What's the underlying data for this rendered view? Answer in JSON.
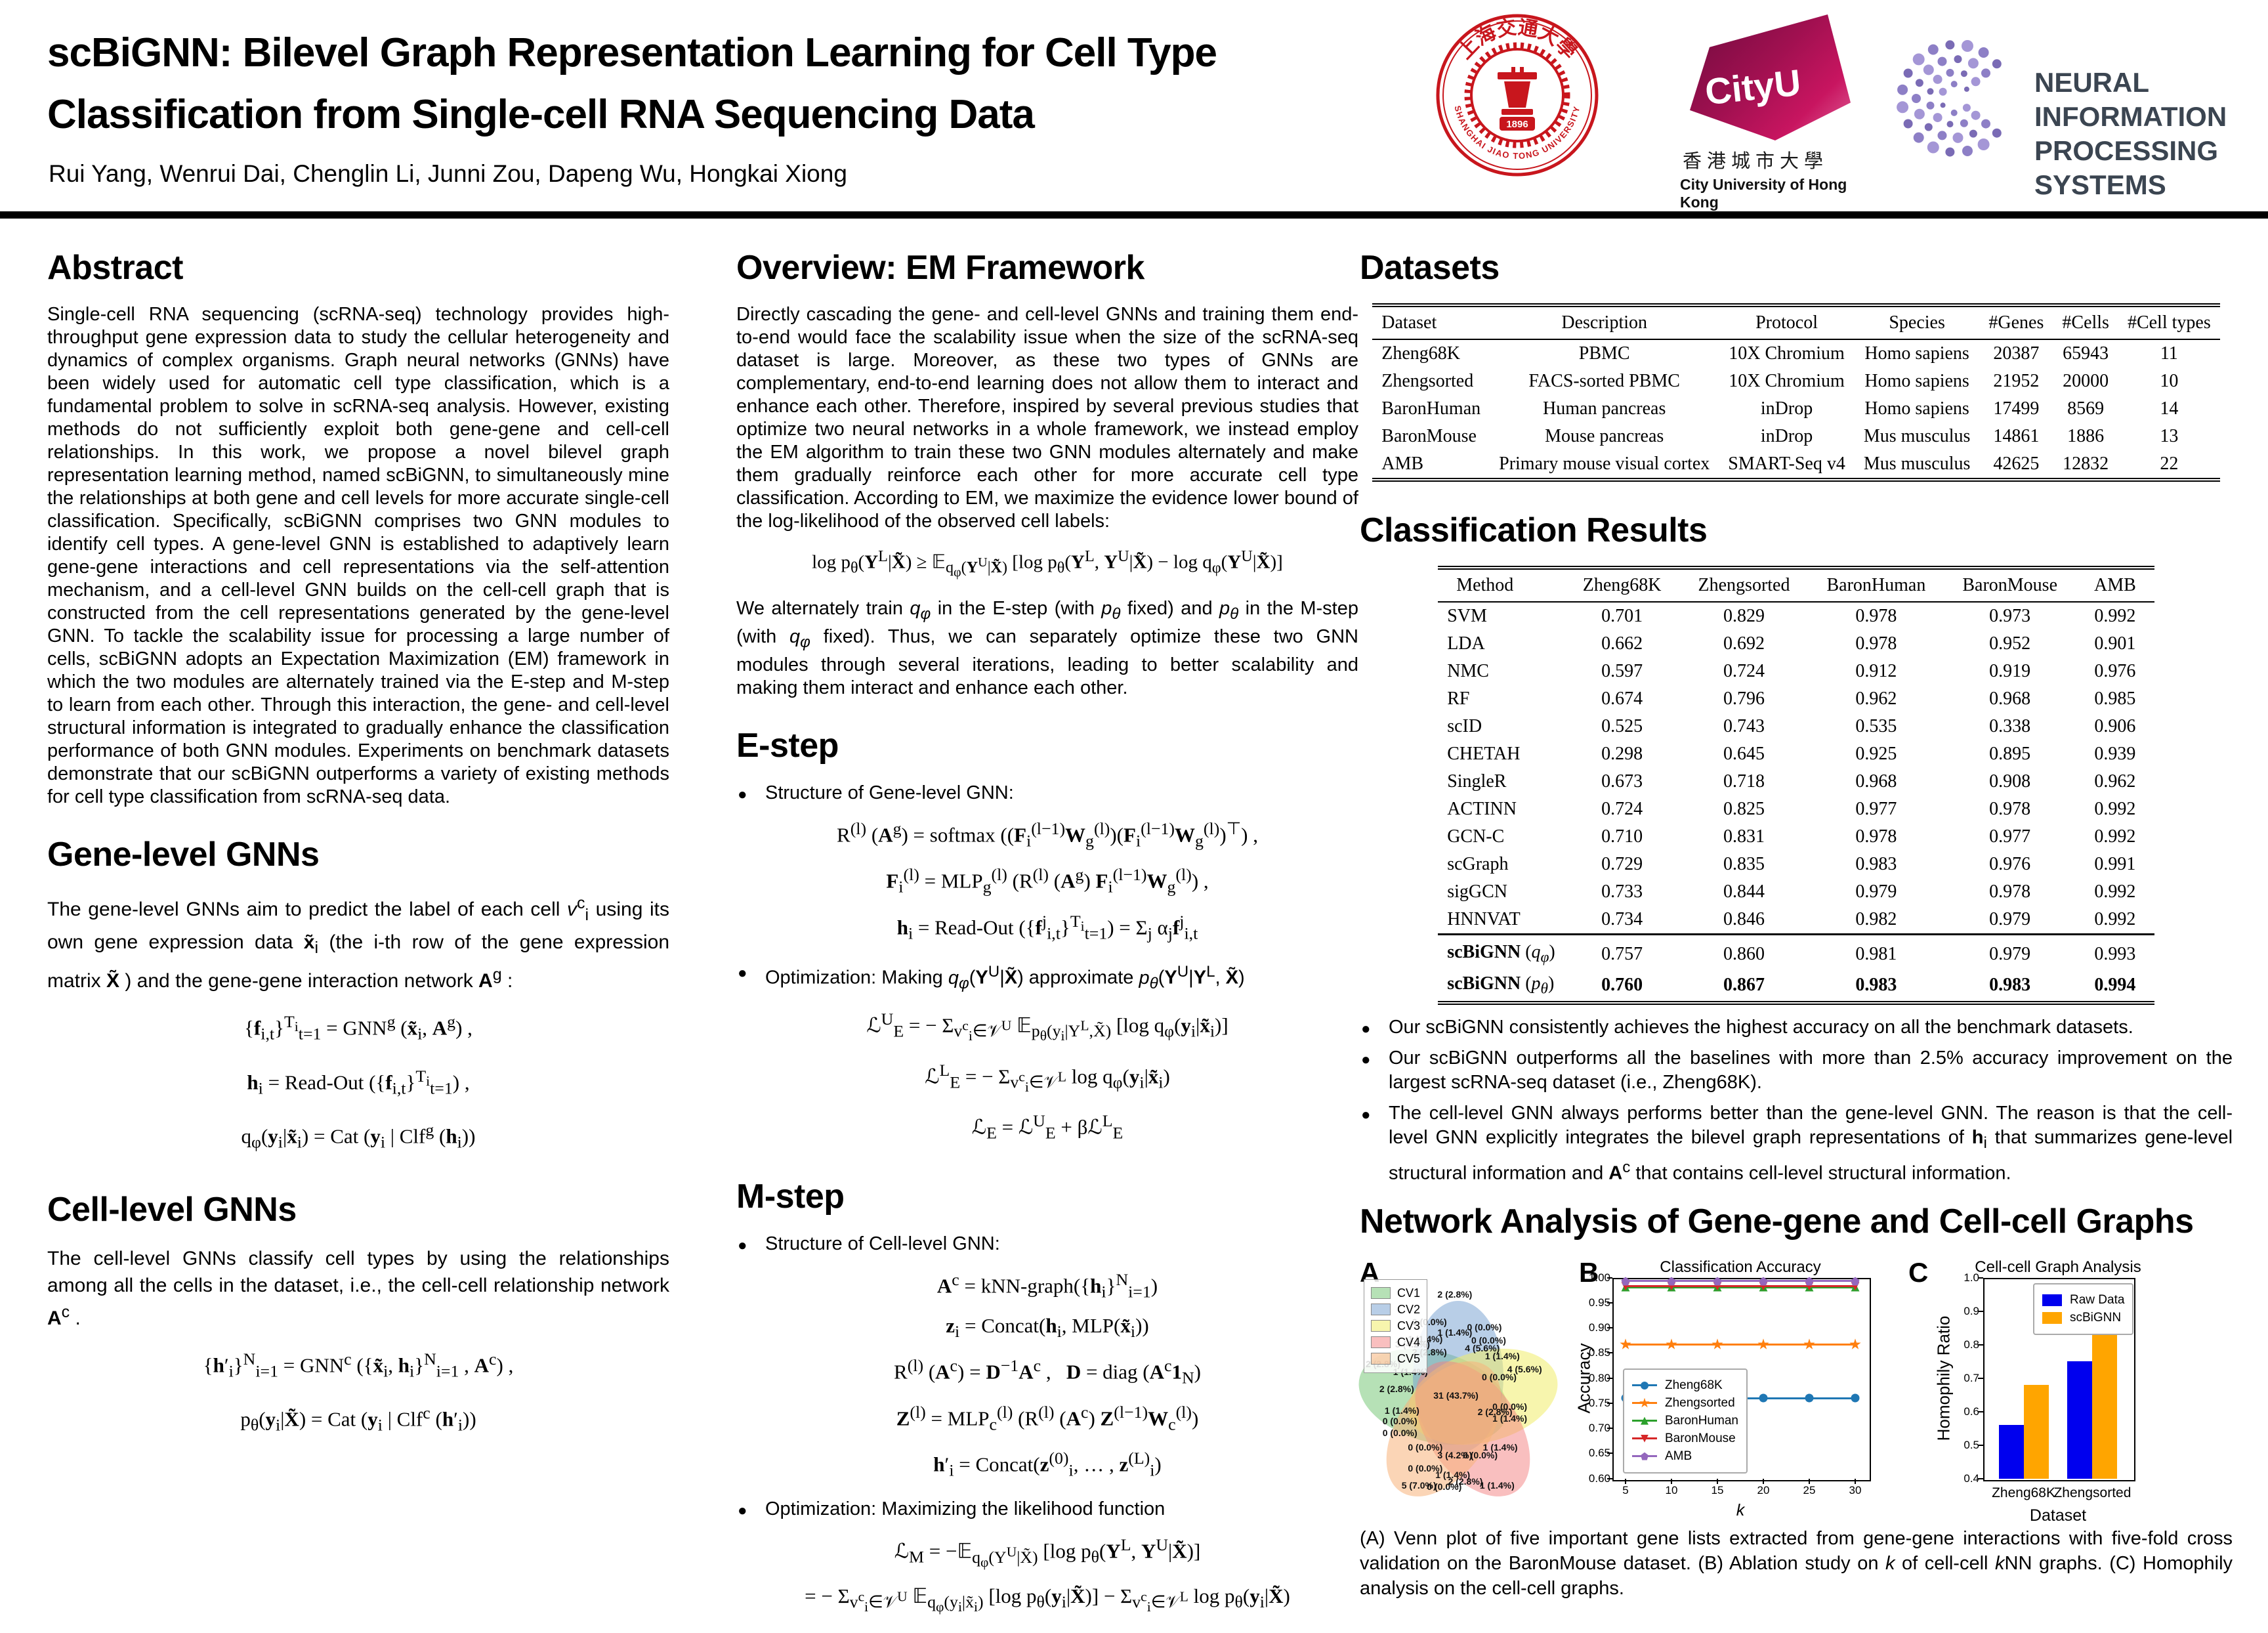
{
  "header": {
    "title_line1": "scBiGNN: Bilevel Graph Representation Learning for Cell Type",
    "title_line2": "Classification from Single-cell RNA Sequencing Data",
    "authors": "Rui Yang, Wenrui Dai, Chenglin Li, Junni Zou, Dapeng Wu, Hongkai Xiong",
    "logos": {
      "sjtu": {
        "arc_top": "上海交通大學",
        "arc_bottom": "SHANGHAI JIAO TONG UNIVERSITY",
        "year": "1896"
      },
      "cityu": {
        "name": "CityU",
        "chinese": "香港城市大學",
        "english": "City University of Hong Kong"
      },
      "neurips": {
        "line1": "NEURAL INFORMATION",
        "line2": "PROCESSING SYSTEMS"
      }
    }
  },
  "abstract": {
    "heading": "Abstract",
    "body": "Single-cell RNA sequencing (scRNA-seq) technology provides high-throughput gene expression data to study the cellular heterogeneity and dynamics of complex organisms. Graph neural networks (GNNs) have been widely used for automatic cell type classification, which is a fundamental problem to solve in scRNA-seq analysis. However, existing methods do not sufficiently exploit both gene-gene and cell-cell relationships. In this work, we propose a novel bilevel graph representation learning method, named scBiGNN, to simultaneously mine the relationships at both gene and cell levels for more accurate single-cell classification. Specifically, scBiGNN comprises two GNN modules to identify cell types. A gene-level GNN is established to adaptively learn gene-gene interactions and cell representations via the self-attention mechanism, and a cell-level GNN builds on the cell-cell graph that is constructed from the cell representations generated by the gene-level GNN. To tackle the scalability issue for processing a large number of cells, scBiGNN adopts an Expectation Maximization (EM) framework in which the two modules are alternately trained via the E-step and M-step to learn from each other. Through this interaction, the gene- and cell-level structural information is integrated to gradually enhance the classification performance of both GNN modules. Experiments on benchmark datasets demonstrate that our scBiGNN outperforms a variety of existing methods for cell type classification from scRNA-seq data."
  },
  "gene_gnn": {
    "heading": "Gene-level GNNs",
    "intro_html": "The gene-level GNNs aim to predict the label of each cell <i>v</i><sup>c</sup><sub>i</sub> using its own gene expression data <b>x̃</b><sub>i</sub> (the i-th row of the gene expression matrix <b>X̃</b> ) and the gene-gene interaction network <b>A</b><sup>g</sup> :",
    "equations": [
      "{<b>f</b><sub>i,t</sub>}<sup>T<sub>i</sub></sup><sub>t=1</sub> = GNN<sup>g</sup> (<b>x̃</b><sub>i</sub>, <b>A</b><sup>g</sup>) ,",
      "<b>h</b><sub>i</sub> = Read-Out ({<b>f</b><sub>i,t</sub>}<sup>T<sub>i</sub></sup><sub>t=1</sub>) ,",
      "q<sub>φ</sub>(<b>y</b><sub>i</sub>|<b>x̃</b><sub>i</sub>) = Cat (<b>y</b><sub>i</sub> | Clf<sup>g</sup> (<b>h</b><sub>i</sub>))"
    ]
  },
  "cell_gnn": {
    "heading": "Cell-level GNNs",
    "intro_html": "The cell-level GNNs classify cell types by using the relationships among all the cells in the dataset, i.e., the cell-cell relationship network <b>A</b><sup>c</sup> .",
    "equations": [
      "{<b>h</b>′<sub>i</sub>}<sup>N</sup><sub>i=1</sub> = GNN<sup>c</sup> ({<b>x̃</b><sub>i</sub>, <b>h</b><sub>i</sub>}<sup>N</sup><sub>i=1</sub> , <b>A</b><sup>c</sup>) ,",
      "p<sub>θ</sub>(<b>y</b><sub>i</sub>|<b>X̃</b>) = Cat (<b>y</b><sub>i</sub> | Clf<sup>c</sup> (<b>h</b>′<sub>i</sub>))"
    ]
  },
  "overview": {
    "heading": "Overview: EM Framework",
    "body": "Directly cascading the gene- and cell-level GNNs and training them end-to-end would face the scalability issue when the size of the scRNA-seq dataset is large. Moreover, as these two types of GNNs are complementary, end-to-end learning does not allow them to interact and enhance each other. Therefore, inspired by several previous studies that optimize two neural networks in a whole framework, we instead employ the EM algorithm to train these two GNN modules alternately and make them gradually reinforce each other for more accurate cell type classification. According to EM, we maximize the evidence lower bound of the log-likelihood of the observed cell labels:",
    "elbo_html": "log p<sub>θ</sub>(<b>Y</b><sup>L</sup>|<b>X̃</b>) ≥ 𝔼<sub>q<sub>φ</sub>(<b>Y</b><sup>U</sup>|<b>X̃</b>)</sub> [log p<sub>θ</sub>(<b>Y</b><sup>L</sup>, <b>Y</b><sup>U</sup>|<b>X̃</b>) − log q<sub>φ</sub>(<b>Y</b><sup>U</sup>|<b>X̃</b>)]",
    "body2_html": "We alternately train <i>q<sub>φ</sub></i> in the E-step (with <i>p<sub>θ</sub></i> fixed) and <i>p<sub>θ</sub></i> in the M-step (with <i>q<sub>φ</sub></i> fixed). Thus, we can separately optimize these two GNN modules through several iterations, leading to better scalability and making them interact and enhance each other."
  },
  "estep": {
    "heading": "E-step",
    "bullet1": "Structure of Gene-level GNN:",
    "structure_eqs": [
      "R<sup>(l)</sup> (<b>A</b><sup>g</sup>) = softmax ((<b>F</b><sub>i</sub><sup>(l−1)</sup><b>W</b><sub>g</sub><sup>(l)</sup>)(<b>F</b><sub>i</sub><sup>(l−1)</sup><b>W</b><sub>g</sub><sup>(l)</sup>)<sup>⊤</sup>) ,",
      "<b>F</b><sub>i</sub><sup>(l)</sup> = MLP<sub>g</sub><sup>(l)</sup> (R<sup>(l)</sup> (<b>A</b><sup>g</sup>) <b>F</b><sub>i</sub><sup>(l−1)</sup><b>W</b><sub>g</sub><sup>(l)</sup>) ,",
      "<b>h</b><sub>i</sub> = Read-Out ({<b>f</b><sup>j</sup><sub>i,t</sub>}<sup>T<sub>i</sub></sup><sub>t=1</sub>) = Σ<sub>j</sub> α<sub>j</sub><b>f</b><sup>j</sup><sub>i,t</sub>"
    ],
    "bullet2_html": "Optimization: Making <i>q<sub>φ</sub></i>(<b>Y</b><sup>U</sup>|<b>X̃</b>) approximate <i>p<sub>θ</sub></i>(<b>Y</b><sup>U</sup>|<b>Y</b><sup>L</sup>, <b>X̃</b>)",
    "opt_eqs": [
      "ℒ<sup>U</sup><sub>E</sub> = − Σ<sub>v<sup>c</sup><sub>i</sub>∈𝒱<sup>U</sup></sub> 𝔼<sub>p<sub>θ</sub>(y<sub>i</sub>|Y<sup>L</sup>,X̃)</sub> [log q<sub>φ</sub>(<b>y</b><sub>i</sub>|<b>x̃</b><sub>i</sub>)]",
      "ℒ<sup>L</sup><sub>E</sub> = − Σ<sub>v<sup>c</sup><sub>i</sub>∈𝒱<sup>L</sup></sub> log q<sub>φ</sub>(<b>y</b><sub>i</sub>|<b>x̃</b><sub>i</sub>)",
      "ℒ<sub>E</sub> = ℒ<sup>U</sup><sub>E</sub> + βℒ<sup>L</sup><sub>E</sub>"
    ]
  },
  "mstep": {
    "heading": "M-step",
    "bullet1": "Structure of Cell-level GNN:",
    "structure_eqs": [
      "<b>A</b><sup>c</sup> = kNN-graph({<b>h</b><sub>i</sub>}<sup>N</sup><sub>i=1</sub>)",
      "<b>z</b><sub>i</sub> = Concat(<b>h</b><sub>i</sub>, MLP(<b>x̃</b><sub>i</sub>))",
      "R<sup>(l)</sup> (<b>A</b><sup>c</sup>) = <b>D</b><sup>−1</sup><b>A</b><sup>c</sup> ,&nbsp;&nbsp;&nbsp;<b>D</b> = diag (<b>A</b><sup>c</sup><b>1</b><sub>N</sub>)",
      "<b>Z</b><sup>(l)</sup> = MLP<sub>c</sub><sup>(l)</sup> (R<sup>(l)</sup> (<b>A</b><sup>c</sup>) <b>Z</b><sup>(l−1)</sup><b>W</b><sub>c</sub><sup>(l)</sup>)",
      "<b>h</b>′<sub>i</sub> = Concat(<b>z</b><sup>(0)</sup><sub>i</sub>, … , <b>z</b><sup>(L)</sup><sub>i</sub>)"
    ],
    "bullet2": "Optimization: Maximizing the likelihood function",
    "opt_eqs": [
      "ℒ<sub>M</sub> = −𝔼<sub>q<sub>φ</sub>(Y<sup>U</sup>|X̃)</sub> [log p<sub>θ</sub>(<b>Y</b><sup>L</sup>, <b>Y</b><sup>U</sup>|<b>X̃</b>)]",
      "= − Σ<sub>v<sup>c</sup><sub>i</sub>∈𝒱<sup>U</sup></sub> 𝔼<sub>q<sub>φ</sub>(y<sub>i</sub>|x̃<sub>i</sub>)</sub> [log p<sub>θ</sub>(<b>y</b><sub>i</sub>|<b>X̃</b>)] − Σ<sub>v<sup>c</sup><sub>i</sub>∈𝒱<sup>L</sup></sub> log p<sub>θ</sub>(<b>y</b><sub>i</sub>|<b>X̃</b>)"
    ]
  },
  "datasets": {
    "heading": "Datasets",
    "columns": [
      "Dataset",
      "Description",
      "Protocol",
      "Species",
      "#Genes",
      "#Cells",
      "#Cell types"
    ],
    "rows": [
      [
        "Zheng68K",
        "PBMC",
        "10X Chromium",
        "Homo sapiens",
        "20387",
        "65943",
        "11"
      ],
      [
        "Zhengsorted",
        "FACS-sorted PBMC",
        "10X Chromium",
        "Homo sapiens",
        "21952",
        "20000",
        "10"
      ],
      [
        "BaronHuman",
        "Human pancreas",
        "inDrop",
        "Homo sapiens",
        "17499",
        "8569",
        "14"
      ],
      [
        "BaronMouse",
        "Mouse pancreas",
        "inDrop",
        "Mus musculus",
        "14861",
        "1886",
        "13"
      ],
      [
        "AMB",
        "Primary mouse visual cortex",
        "SMART-Seq v4",
        "Mus musculus",
        "42625",
        "12832",
        "22"
      ]
    ]
  },
  "results": {
    "heading": "Classification Results",
    "columns": [
      "Method",
      "Zheng68K",
      "Zhengsorted",
      "BaronHuman",
      "BaronMouse",
      "AMB"
    ],
    "rows": [
      [
        "SVM",
        "0.701",
        "0.829",
        "0.978",
        "0.973",
        "0.992"
      ],
      [
        "LDA",
        "0.662",
        "0.692",
        "0.978",
        "0.952",
        "0.901"
      ],
      [
        "NMC",
        "0.597",
        "0.724",
        "0.912",
        "0.919",
        "0.976"
      ],
      [
        "RF",
        "0.674",
        "0.796",
        "0.962",
        "0.968",
        "0.985"
      ],
      [
        "scID",
        "0.525",
        "0.743",
        "0.535",
        "0.338",
        "0.906"
      ],
      [
        "CHETAH",
        "0.298",
        "0.645",
        "0.925",
        "0.895",
        "0.939"
      ],
      [
        "SingleR",
        "0.673",
        "0.718",
        "0.968",
        "0.908",
        "0.962"
      ],
      [
        "ACTINN",
        "0.724",
        "0.825",
        "0.977",
        "0.978",
        "0.992"
      ],
      [
        "GCN-C",
        "0.710",
        "0.831",
        "0.978",
        "0.977",
        "0.992"
      ],
      [
        "scGraph",
        "0.729",
        "0.835",
        "0.983",
        "0.976",
        "0.991"
      ],
      [
        "sigGCN",
        "0.733",
        "0.844",
        "0.979",
        "0.978",
        "0.992"
      ],
      [
        "HNNVAT",
        "0.734",
        "0.846",
        "0.982",
        "0.979",
        "0.992"
      ]
    ],
    "final_rows": [
      {
        "method_html": "<b>scBiGNN</b> (<i>q<sub>φ</sub></i>)",
        "values": [
          "0.757",
          "0.860",
          "0.981",
          "0.979",
          "0.993"
        ],
        "bold_values": false
      },
      {
        "method_html": "<b>scBiGNN</b> (<i>p<sub>θ</sub></i>)",
        "values": [
          "0.760",
          "0.867",
          "0.983",
          "0.983",
          "0.994"
        ],
        "bold_values": true
      }
    ]
  },
  "findings": {
    "items_html": [
      "Our scBiGNN consistently achieves the highest accuracy on all the benchmark datasets.",
      "Our scBiGNN outperforms all the baselines with more than 2.5% accuracy improvement on the largest scRNA-seq dataset (i.e., Zheng68K).",
      "The cell-level GNN always performs better than the gene-level GNN. The reason is that the cell-level GNN explicitly integrates the bilevel graph representations of <b>h</b><sub>i</sub> that summarizes gene-level structural information and <b>A</b><sup>c</sup> that contains cell-level structural information."
    ]
  },
  "network": {
    "heading": "Network Analysis of Gene-gene and Cell-cell Graphs",
    "caption_html": "(A) Venn plot of five important gene lists extracted from gene-gene interactions with five-fold cross validation on the BaronMouse dataset. (B) Ablation study on <i>k</i> of cell-cell <i>k</i>NN graphs. (C) Homophily analysis on the cell-cell graphs."
  },
  "chart_data": [
    {
      "type": "venn",
      "panel": "A",
      "legend": [
        "CV1",
        "CV2",
        "CV3",
        "CV4",
        "CV5"
      ],
      "colors": {
        "CV1": "rgba(109,195,109,0.5)",
        "CV2": "rgba(114,158,208,0.5)",
        "CV3": "rgba(240,236,106,0.55)",
        "CV4": "rgba(243,128,128,0.5)",
        "CV5": "rgba(248,178,122,0.55)"
      },
      "labels": [
        {
          "t": "2 (2.8%)",
          "x": 45,
          "y": 14.5
        },
        {
          "t": "0 (0.0%)",
          "x": 33,
          "y": 25
        },
        {
          "t": "1 (1.4%)",
          "x": 45,
          "y": 29
        },
        {
          "t": "0 (0.0%)",
          "x": 59,
          "y": 27
        },
        {
          "t": "1 (1.4%)",
          "x": 31,
          "y": 31.5
        },
        {
          "t": "3 (4.2%)",
          "x": 25,
          "y": 33.5
        },
        {
          "t": "0 (0.0%)",
          "x": 61,
          "y": 32
        },
        {
          "t": "2 (2.8%)",
          "x": 33,
          "y": 36.5
        },
        {
          "t": "4 (5.6%)",
          "x": 58,
          "y": 35
        },
        {
          "t": "1 (1.4%)",
          "x": 67.5,
          "y": 38
        },
        {
          "t": "2 (2.8%)",
          "x": 11,
          "y": 41
        },
        {
          "t": "4 (5.6%)",
          "x": 78,
          "y": 43
        },
        {
          "t": "1 (1.4%)",
          "x": 24,
          "y": 44
        },
        {
          "t": "0 (0.0%)",
          "x": 66,
          "y": 46
        },
        {
          "t": "2 (2.8%)",
          "x": 17.5,
          "y": 50.5
        },
        {
          "t": "31 (43.7%)",
          "x": 45.5,
          "y": 53
        },
        {
          "t": "2 (2.8%)",
          "x": 64,
          "y": 59.5
        },
        {
          "t": "0 (0.0%)",
          "x": 71,
          "y": 57.5
        },
        {
          "t": "1 (1.4%)",
          "x": 20,
          "y": 59
        },
        {
          "t": "0 (0.0%)",
          "x": 19,
          "y": 63
        },
        {
          "t": "1 (1.4%)",
          "x": 71,
          "y": 62
        },
        {
          "t": "0 (0.0%)",
          "x": 19,
          "y": 67.5
        },
        {
          "t": "0 (0.0%)",
          "x": 31,
          "y": 73
        },
        {
          "t": "1 (1.4%)",
          "x": 66.5,
          "y": 73
        },
        {
          "t": "3 (4.2%)",
          "x": 45,
          "y": 76
        },
        {
          "t": "0 (0.0%)",
          "x": 57,
          "y": 76
        },
        {
          "t": "0 (0.0%)",
          "x": 31,
          "y": 81
        },
        {
          "t": "1 (1.4%)",
          "x": 44,
          "y": 83.5
        },
        {
          "t": "2 (2.8%)",
          "x": 50,
          "y": 86
        },
        {
          "t": "0 (0.0%)",
          "x": 40,
          "y": 88
        },
        {
          "t": "5 (7.0%)",
          "x": 28,
          "y": 87.5
        },
        {
          "t": "1 (1.4%)",
          "x": 65,
          "y": 87.5
        }
      ]
    },
    {
      "type": "line",
      "panel": "B",
      "title": "Classification Accuracy",
      "xlabel": "k",
      "ylabel": "Accuracy",
      "x": [
        5,
        10,
        15,
        20,
        25,
        30
      ],
      "ylim": [
        0.6,
        1.0
      ],
      "yticks": [
        0.6,
        0.65,
        0.7,
        0.75,
        0.8,
        0.85,
        0.9,
        0.95,
        1.0
      ],
      "legend_position": "lower left",
      "series": [
        {
          "name": "Zheng68K",
          "color": "#1f77b4",
          "marker": "circle",
          "values": [
            0.76,
            0.76,
            0.76,
            0.76,
            0.76,
            0.76
          ]
        },
        {
          "name": "Zhengsorted",
          "color": "#ff7f0e",
          "marker": "star",
          "values": [
            0.867,
            0.867,
            0.867,
            0.867,
            0.867,
            0.867
          ]
        },
        {
          "name": "BaronHuman",
          "color": "#2ca02c",
          "marker": "triangle-up",
          "values": [
            0.981,
            0.981,
            0.981,
            0.981,
            0.981,
            0.981
          ]
        },
        {
          "name": "BaronMouse",
          "color": "#d62728",
          "marker": "triangle-down",
          "values": [
            0.983,
            0.983,
            0.983,
            0.983,
            0.983,
            0.983
          ]
        },
        {
          "name": "AMB",
          "color": "#9467bd",
          "marker": "pentagon",
          "values": [
            0.993,
            0.993,
            0.993,
            0.993,
            0.993,
            0.993
          ]
        }
      ]
    },
    {
      "type": "bar",
      "panel": "C",
      "title": "Cell-cell Graph Analysis",
      "xlabel": "Dataset",
      "ylabel": "Homophily Ratio",
      "categories": [
        "Zheng68K",
        "Zhengsorted"
      ],
      "ylim": [
        0.4,
        1.0
      ],
      "yticks": [
        0.4,
        0.5,
        0.6,
        0.7,
        0.8,
        0.9,
        1.0
      ],
      "legend_position": "upper right",
      "series": [
        {
          "name": "Raw Data",
          "color": "#0000ee",
          "values": [
            0.56,
            0.75
          ]
        },
        {
          "name": "scBiGNN",
          "color": "#ffa500",
          "values": [
            0.68,
            0.84
          ]
        }
      ]
    }
  ]
}
